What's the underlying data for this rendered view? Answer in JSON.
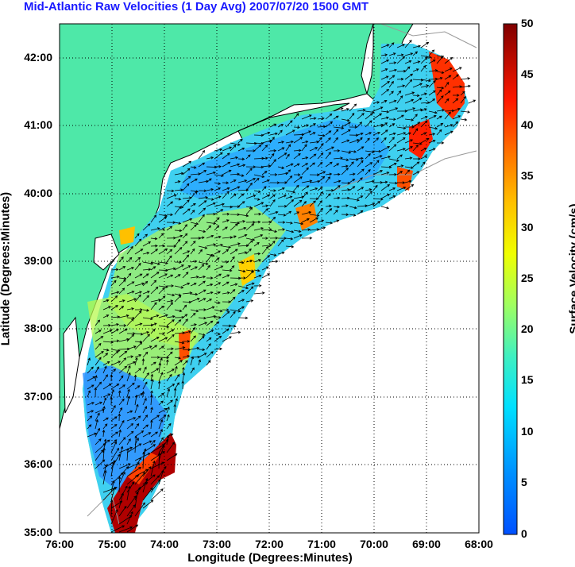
{
  "title": "Mid-Atlantic Raw Velocities (1 Day Avg) 2007/07/20 1500 GMT",
  "axes": {
    "xlabel": "Longitude (Degrees:Minutes)",
    "ylabel": "Latitude (Degrees:Minutes)",
    "x_ticks": [
      "76:00",
      "75:00",
      "74:00",
      "73:00",
      "72:00",
      "71:00",
      "70:00",
      "69:00",
      "68:00"
    ],
    "y_ticks": [
      "42:00",
      "41:00",
      "40:00",
      "39:00",
      "38:00",
      "37:00",
      "36:00",
      "35:00"
    ],
    "x_range": [
      -76,
      -68
    ],
    "y_range": [
      35,
      42.5
    ],
    "grid": "dotted"
  },
  "colorbar": {
    "label": "Surface Velocity (cm/s)",
    "ticks": [
      "50",
      "45",
      "40",
      "35",
      "30",
      "25",
      "20",
      "15",
      "10",
      "5",
      "0"
    ],
    "range": [
      0,
      50
    ],
    "colormap": "jet"
  },
  "colors": {
    "land": "#4ee8a8",
    "ocean": "#ffffff",
    "title": "#1a1aff",
    "grid": "#000000"
  }
}
